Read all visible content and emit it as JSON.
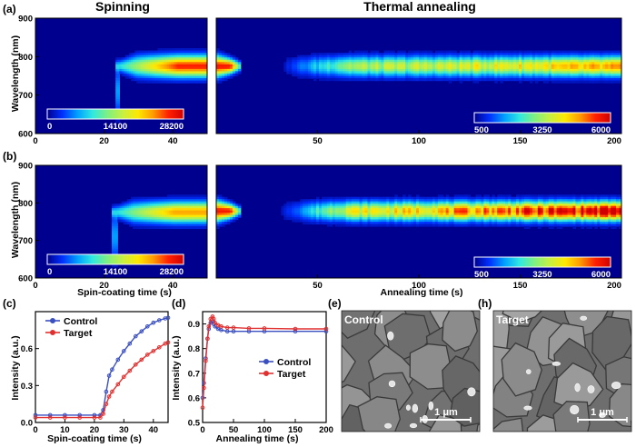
{
  "sections": {
    "left_title": "Spinning",
    "right_title": "Thermal annealing"
  },
  "panel_tags": [
    "(a)",
    "(b)",
    "(c)",
    "(d)",
    "(e)",
    "(h)"
  ],
  "colormap": [
    "#00008f",
    "#0030ff",
    "#00a0ff",
    "#30e8e0",
    "#80f080",
    "#c8f040",
    "#ffe800",
    "#ff9a00",
    "#ff2000",
    "#d00000"
  ],
  "chart_data": [
    {
      "type": "heatmap",
      "panel": "(a)",
      "region": "spinning",
      "xlabel": "",
      "ylabel": "Wavelength (nm)",
      "xlim": [
        0,
        50
      ],
      "ylim": [
        600,
        900
      ],
      "x_ticks": [
        0,
        20,
        40
      ],
      "y_ticks": [
        600,
        700,
        800,
        900
      ],
      "peak_wavelength_nm": 775,
      "onset_time_s": 24,
      "colorbar_ticks": [
        "0",
        "14100",
        "28200"
      ]
    },
    {
      "type": "heatmap",
      "panel": "(a)",
      "region": "thermal_annealing",
      "xlabel": "",
      "xlim": [
        0,
        200
      ],
      "ylim": [
        600,
        900
      ],
      "x_ticks": [
        50,
        100,
        150,
        200
      ],
      "peak_wavelength_nm": 775,
      "colorbar_ticks": [
        "500",
        "3250",
        "6000"
      ]
    },
    {
      "type": "heatmap",
      "panel": "(b)",
      "region": "spinning",
      "xlabel": "Spin-coating time (s)",
      "ylabel": "Wavelength (nm)",
      "xlim": [
        0,
        50
      ],
      "ylim": [
        600,
        900
      ],
      "x_ticks": [
        0,
        20,
        40
      ],
      "y_ticks": [
        600,
        700,
        800,
        900
      ],
      "peak_wavelength_nm": 775,
      "onset_time_s": 23,
      "colorbar_ticks": [
        "0",
        "14100",
        "28200"
      ]
    },
    {
      "type": "heatmap",
      "panel": "(b)",
      "region": "thermal_annealing",
      "xlabel": "Annealing time (s)",
      "xlim": [
        0,
        200
      ],
      "ylim": [
        600,
        900
      ],
      "x_ticks": [
        50,
        100,
        150,
        200
      ],
      "peak_wavelength_nm": 778,
      "colorbar_ticks": [
        "500",
        "3250",
        "6000"
      ]
    },
    {
      "type": "line",
      "panel": "(c)",
      "xlabel": "Spin-coating time (s)",
      "ylabel": "Intensity (a.u.)",
      "xlim": [
        0,
        45
      ],
      "ylim": [
        0,
        0.9
      ],
      "x_ticks": [
        0,
        10,
        20,
        30,
        40
      ],
      "y_ticks": [
        0.0,
        0.3,
        0.6
      ],
      "legend_position": "top-right",
      "series": [
        {
          "name": "Control",
          "color": "#3a4fc0",
          "x": [
            0,
            5,
            10,
            15,
            20,
            22,
            23,
            24,
            25,
            26,
            28,
            30,
            32,
            34,
            36,
            38,
            40,
            42,
            44,
            45
          ],
          "y": [
            0.06,
            0.06,
            0.06,
            0.06,
            0.06,
            0.06,
            0.1,
            0.25,
            0.38,
            0.43,
            0.51,
            0.58,
            0.64,
            0.7,
            0.74,
            0.78,
            0.81,
            0.83,
            0.845,
            0.85
          ]
        },
        {
          "name": "Target",
          "color": "#e03030",
          "x": [
            0,
            5,
            10,
            15,
            20,
            22,
            23,
            24,
            25,
            26,
            28,
            30,
            32,
            34,
            36,
            38,
            40,
            42,
            44,
            45
          ],
          "y": [
            0.04,
            0.04,
            0.04,
            0.04,
            0.04,
            0.04,
            0.07,
            0.15,
            0.21,
            0.25,
            0.31,
            0.37,
            0.42,
            0.47,
            0.51,
            0.55,
            0.58,
            0.61,
            0.64,
            0.65
          ]
        }
      ]
    },
    {
      "type": "line",
      "panel": "(d)",
      "xlabel": "Annealing time (s)",
      "ylabel": "Intensity (a.u.)",
      "xlim": [
        0,
        200
      ],
      "ylim": [
        0.5,
        0.95
      ],
      "x_ticks": [
        0,
        50,
        100,
        150,
        200
      ],
      "y_ticks": [
        0.5,
        0.6,
        0.7,
        0.8,
        0.9
      ],
      "legend_position": "center-right",
      "series": [
        {
          "name": "Control",
          "color": "#3a4fc0",
          "x": [
            0,
            2,
            5,
            8,
            10,
            13,
            16,
            18,
            20,
            25,
            30,
            40,
            50,
            75,
            100,
            150,
            200
          ],
          "y": [
            0.6,
            0.66,
            0.76,
            0.84,
            0.88,
            0.905,
            0.91,
            0.9,
            0.89,
            0.88,
            0.875,
            0.87,
            0.87,
            0.87,
            0.87,
            0.87,
            0.87
          ]
        },
        {
          "name": "Target",
          "color": "#e03030",
          "x": [
            0,
            2,
            5,
            8,
            10,
            13,
            16,
            18,
            20,
            25,
            30,
            40,
            50,
            75,
            100,
            150,
            200
          ],
          "y": [
            0.56,
            0.64,
            0.75,
            0.84,
            0.89,
            0.92,
            0.93,
            0.92,
            0.905,
            0.895,
            0.89,
            0.885,
            0.885,
            0.882,
            0.882,
            0.88,
            0.88
          ]
        }
      ]
    }
  ],
  "sem_images": [
    {
      "panel": "(e)",
      "label": "Control",
      "scale_bar": "1 μm"
    },
    {
      "panel": "(h)",
      "label": "Target",
      "scale_bar": "1 μm"
    }
  ]
}
